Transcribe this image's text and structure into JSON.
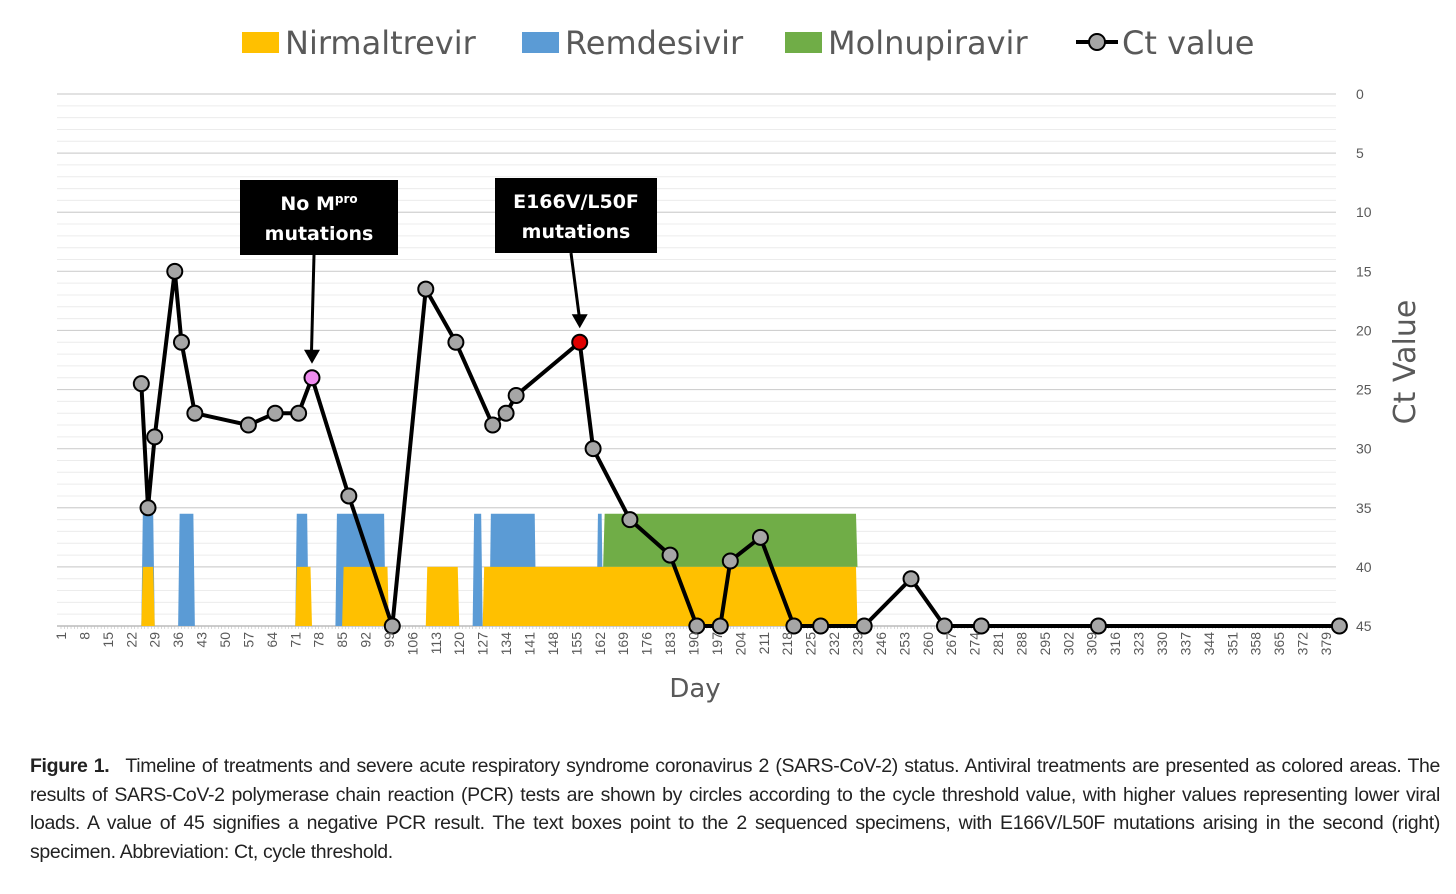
{
  "chart_data": {
    "type": "line",
    "xlabel": "Day",
    "ylabel": "Ct Value",
    "ylim": [
      0,
      45
    ],
    "y_inverted": true,
    "y_ticks": [
      0,
      5,
      10,
      15,
      20,
      25,
      30,
      35,
      40,
      45
    ],
    "x_ticks": [
      1,
      8,
      15,
      22,
      29,
      36,
      43,
      50,
      57,
      64,
      71,
      78,
      85,
      92,
      99,
      106,
      113,
      120,
      127,
      134,
      141,
      148,
      155,
      162,
      169,
      176,
      183,
      190,
      197,
      204,
      211,
      218,
      225,
      232,
      239,
      246,
      253,
      260,
      267,
      274,
      281,
      288,
      295,
      302,
      309,
      316,
      323,
      330,
      337,
      344,
      351,
      358,
      365,
      372,
      379
    ],
    "grid": true,
    "legend": {
      "position": "top",
      "entries": [
        {
          "label": "Nirmaltrevir",
          "color": "#ffc000",
          "kind": "area"
        },
        {
          "label": "Remdesivir",
          "color": "#5b9bd5",
          "kind": "area"
        },
        {
          "label": "Molnupiravir",
          "color": "#70ad47",
          "kind": "area"
        },
        {
          "label": "Ct value",
          "color": "#000000",
          "kind": "line-marker"
        }
      ]
    },
    "treatments": [
      {
        "name": "Nirmaltrevir",
        "color": "#ffc000",
        "y_top": 40,
        "y_bottom": 45,
        "periods": [
          [
            25,
            29
          ],
          [
            71,
            76
          ],
          [
            85,
            99
          ],
          [
            110,
            120
          ],
          [
            127,
            239
          ]
        ]
      },
      {
        "name": "Remdesivir",
        "color": "#5b9bd5",
        "y_top": 35.5,
        "y_bottom": 45,
        "periods": [
          [
            25,
            29
          ],
          [
            36,
            41
          ],
          [
            71,
            75
          ],
          [
            83,
            98
          ],
          [
            124,
            127
          ],
          [
            129,
            143
          ],
          [
            161,
            163
          ]
        ]
      },
      {
        "name": "Molnupiravir",
        "color": "#70ad47",
        "y_top": 35.5,
        "y_bottom": 40,
        "periods": [
          [
            163,
            239
          ]
        ]
      }
    ],
    "series": [
      {
        "name": "Ct value",
        "color": "#000000",
        "points": [
          {
            "x": 25,
            "y": 24.5
          },
          {
            "x": 27,
            "y": 35
          },
          {
            "x": 29,
            "y": 29
          },
          {
            "x": 35,
            "y": 15
          },
          {
            "x": 37,
            "y": 21
          },
          {
            "x": 41,
            "y": 27
          },
          {
            "x": 57,
            "y": 28
          },
          {
            "x": 65,
            "y": 27
          },
          {
            "x": 72,
            "y": 27
          },
          {
            "x": 76,
            "y": 24,
            "color": "#f08cf0"
          },
          {
            "x": 87,
            "y": 34
          },
          {
            "x": 100,
            "y": 45
          },
          {
            "x": 110,
            "y": 16.5
          },
          {
            "x": 119,
            "y": 21
          },
          {
            "x": 130,
            "y": 28
          },
          {
            "x": 134,
            "y": 27
          },
          {
            "x": 137,
            "y": 25.5
          },
          {
            "x": 156,
            "y": 21,
            "color": "#e00000"
          },
          {
            "x": 160,
            "y": 30
          },
          {
            "x": 171,
            "y": 36
          },
          {
            "x": 183,
            "y": 39
          },
          {
            "x": 191,
            "y": 45
          },
          {
            "x": 198,
            "y": 45
          },
          {
            "x": 201,
            "y": 39.5
          },
          {
            "x": 210,
            "y": 37.5
          },
          {
            "x": 220,
            "y": 45
          },
          {
            "x": 228,
            "y": 45
          },
          {
            "x": 241,
            "y": 45
          },
          {
            "x": 255,
            "y": 41
          },
          {
            "x": 265,
            "y": 45
          },
          {
            "x": 276,
            "y": 45
          },
          {
            "x": 311,
            "y": 45
          },
          {
            "x": 383,
            "y": 45
          }
        ]
      }
    ],
    "annotations": [
      {
        "text_main": "No M",
        "text_sup": "pro",
        "text_line2": "mutations",
        "points_to": {
          "x": 76,
          "y": 24
        }
      },
      {
        "text_line1": "E166V/L50F",
        "text_line2": "mutations",
        "points_to": {
          "x": 156,
          "y": 21
        }
      }
    ]
  },
  "caption": {
    "label": "Figure 1.",
    "text": "Timeline of treatments and severe acute respiratory syndrome coronavirus 2 (SARS-CoV-2) status. Antiviral treatments are presented as colored areas. The results of SARS-CoV-2 polymerase chain reaction (PCR) tests are shown by circles according to the cycle threshold value, with higher values representing lower viral loads. A value of 45 signifies a negative PCR result. The text boxes point to the 2 sequenced specimens, with E166V/L50F mutations arising in the second (right) specimen. Abbreviation: Ct, cycle threshold."
  }
}
